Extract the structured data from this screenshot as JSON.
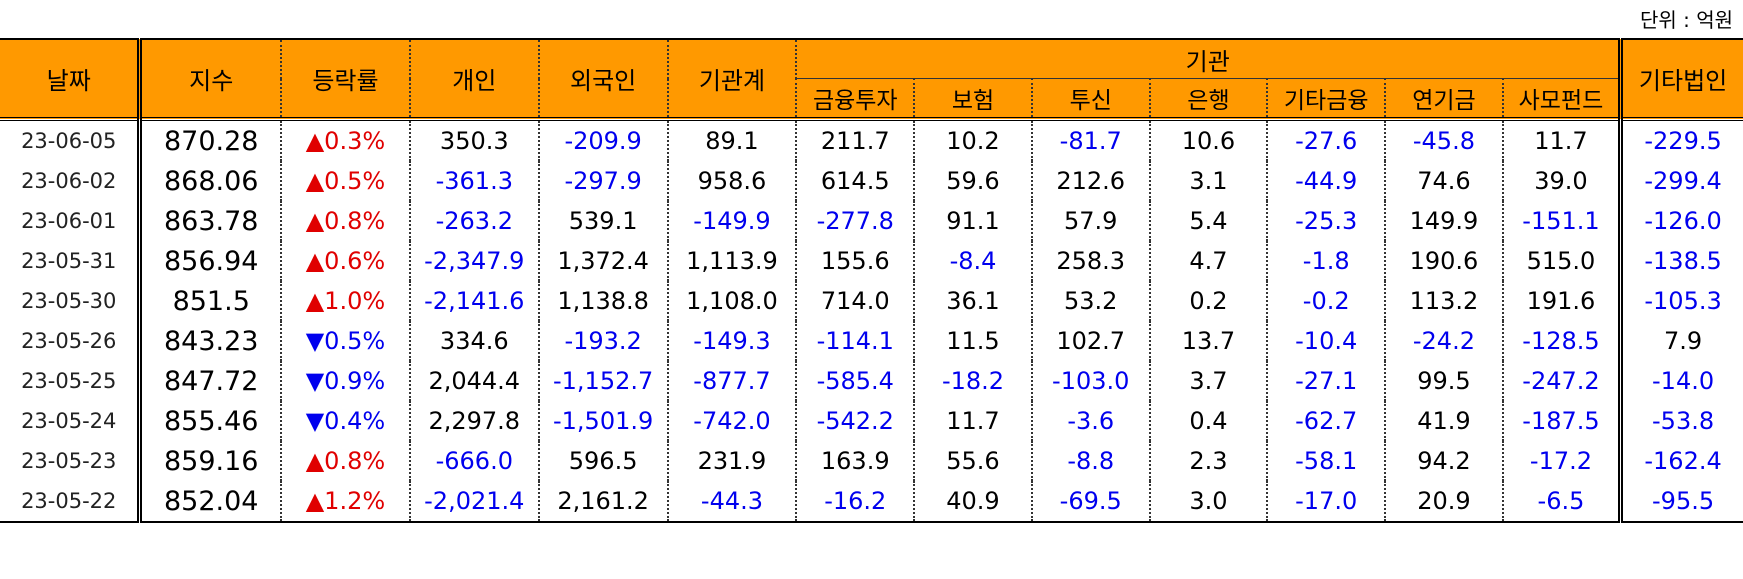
{
  "unit_label": "단위 : 억원",
  "headers": {
    "date": "날짜",
    "index": "지수",
    "change": "등락률",
    "individual": "개인",
    "foreign": "외국인",
    "inst_total": "기관계",
    "inst_group": "기관",
    "inst_sub": [
      "금융투자",
      "보험",
      "투신",
      "은행",
      "기타금융",
      "연기금",
      "사모펀드"
    ],
    "other_corp": "기타법인"
  },
  "colors": {
    "header_bg": "#ff9900",
    "negative": "#0000ee",
    "up": "#e00000",
    "down": "#0000ee"
  },
  "rows": [
    {
      "date": "23-06-05",
      "index": "870.28",
      "change": "0.3%",
      "dir": "up",
      "vals": [
        "350.3",
        "-209.9",
        "89.1",
        "211.7",
        "10.2",
        "-81.7",
        "10.6",
        "-27.6",
        "-45.8",
        "11.7",
        "-229.5"
      ]
    },
    {
      "date": "23-06-02",
      "index": "868.06",
      "change": "0.5%",
      "dir": "up",
      "vals": [
        "-361.3",
        "-297.9",
        "958.6",
        "614.5",
        "59.6",
        "212.6",
        "3.1",
        "-44.9",
        "74.6",
        "39.0",
        "-299.4"
      ]
    },
    {
      "date": "23-06-01",
      "index": "863.78",
      "change": "0.8%",
      "dir": "up",
      "vals": [
        "-263.2",
        "539.1",
        "-149.9",
        "-277.8",
        "91.1",
        "57.9",
        "5.4",
        "-25.3",
        "149.9",
        "-151.1",
        "-126.0"
      ]
    },
    {
      "date": "23-05-31",
      "index": "856.94",
      "change": "0.6%",
      "dir": "up",
      "vals": [
        "-2,347.9",
        "1,372.4",
        "1,113.9",
        "155.6",
        "-8.4",
        "258.3",
        "4.7",
        "-1.8",
        "190.6",
        "515.0",
        "-138.5"
      ]
    },
    {
      "date": "23-05-30",
      "index": "851.5",
      "change": "1.0%",
      "dir": "up",
      "vals": [
        "-2,141.6",
        "1,138.8",
        "1,108.0",
        "714.0",
        "36.1",
        "53.2",
        "0.2",
        "-0.2",
        "113.2",
        "191.6",
        "-105.3"
      ]
    },
    {
      "date": "23-05-26",
      "index": "843.23",
      "change": "0.5%",
      "dir": "down",
      "vals": [
        "334.6",
        "-193.2",
        "-149.3",
        "-114.1",
        "11.5",
        "102.7",
        "13.7",
        "-10.4",
        "-24.2",
        "-128.5",
        "7.9"
      ]
    },
    {
      "date": "23-05-25",
      "index": "847.72",
      "change": "0.9%",
      "dir": "down",
      "vals": [
        "2,044.4",
        "-1,152.7",
        "-877.7",
        "-585.4",
        "-18.2",
        "-103.0",
        "3.7",
        "-27.1",
        "99.5",
        "-247.2",
        "-14.0"
      ]
    },
    {
      "date": "23-05-24",
      "index": "855.46",
      "change": "0.4%",
      "dir": "down",
      "vals": [
        "2,297.8",
        "-1,501.9",
        "-742.0",
        "-542.2",
        "11.7",
        "-3.6",
        "0.4",
        "-62.7",
        "41.9",
        "-187.5",
        "-53.8"
      ]
    },
    {
      "date": "23-05-23",
      "index": "859.16",
      "change": "0.8%",
      "dir": "up",
      "vals": [
        "-666.0",
        "596.5",
        "231.9",
        "163.9",
        "55.6",
        "-8.8",
        "2.3",
        "-58.1",
        "94.2",
        "-17.2",
        "-162.4"
      ]
    },
    {
      "date": "23-05-22",
      "index": "852.04",
      "change": "1.2%",
      "dir": "up",
      "vals": [
        "-2,021.4",
        "2,161.2",
        "-44.3",
        "-16.2",
        "40.9",
        "-69.5",
        "3.0",
        "-17.0",
        "20.9",
        "-6.5",
        "-95.5"
      ]
    }
  ]
}
